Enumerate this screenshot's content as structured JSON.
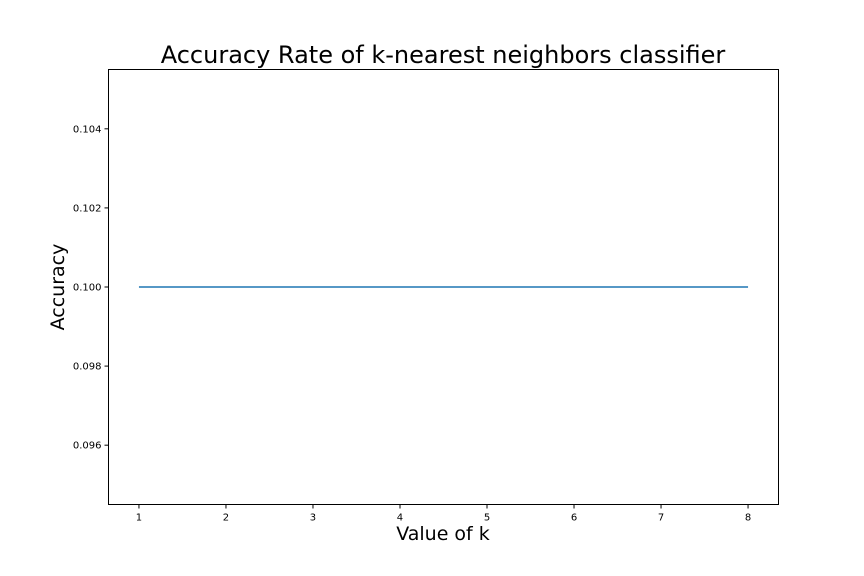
{
  "chart_data": {
    "type": "line",
    "title": "Accuracy Rate of k-nearest neighbors classifier",
    "xlabel": "Value of k",
    "ylabel": "Accuracy",
    "x": [
      1,
      2,
      3,
      4,
      5,
      6,
      7,
      8
    ],
    "series": [
      {
        "values": [
          0.1,
          0.1,
          0.1,
          0.1,
          0.1,
          0.1,
          0.1,
          0.1
        ],
        "color": "#1f77b4"
      }
    ],
    "xlim": [
      0.65,
      8.35
    ],
    "ylim": [
      0.0945,
      0.1055
    ],
    "xticks": [
      1,
      2,
      3,
      4,
      5,
      6,
      7,
      8
    ],
    "yticks": [
      0.096,
      0.098,
      0.1,
      0.102,
      0.104
    ],
    "xtick_labels": [
      "1",
      "2",
      "3",
      "4",
      "5",
      "6",
      "7",
      "8"
    ],
    "ytick_labels": [
      "0.096",
      "0.098",
      "0.100",
      "0.102",
      "0.104"
    ],
    "grid": false,
    "legend": "none"
  }
}
